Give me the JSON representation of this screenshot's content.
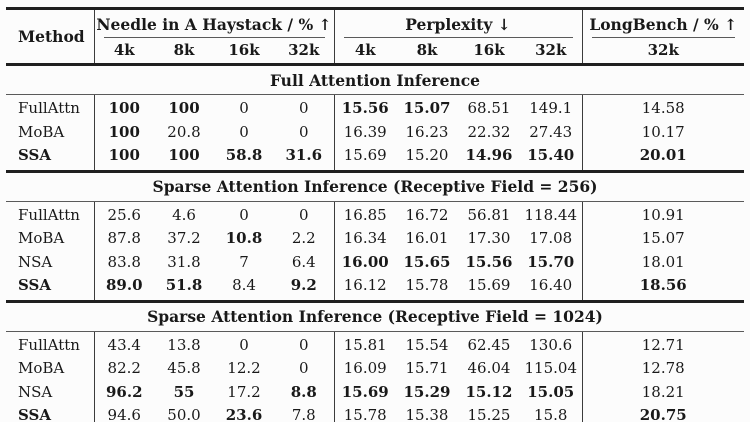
{
  "header": {
    "method": "Method",
    "groups": [
      {
        "label": "Needle in A Haystack / %",
        "arrow": "↑",
        "cols": [
          "4k",
          "8k",
          "16k",
          "32k"
        ]
      },
      {
        "label": "Perplexity",
        "arrow": "↓",
        "cols": [
          "4k",
          "8k",
          "16k",
          "32k"
        ]
      },
      {
        "label": "LongBench / %",
        "arrow": "↑",
        "cols": [
          "32k"
        ]
      }
    ]
  },
  "sections": [
    {
      "title": "Full Attention Inference",
      "rows": [
        {
          "method": "FullAttn",
          "method_bold": false,
          "cells": [
            {
              "v": "100",
              "b": true
            },
            {
              "v": "100",
              "b": true
            },
            {
              "v": "0",
              "b": false
            },
            {
              "v": "0",
              "b": false
            },
            {
              "v": "15.56",
              "b": true
            },
            {
              "v": "15.07",
              "b": true
            },
            {
              "v": "68.51",
              "b": false
            },
            {
              "v": "149.1",
              "b": false
            },
            {
              "v": "14.58",
              "b": false
            }
          ]
        },
        {
          "method": "MoBA",
          "method_bold": false,
          "cells": [
            {
              "v": "100",
              "b": true
            },
            {
              "v": "20.8",
              "b": false
            },
            {
              "v": "0",
              "b": false
            },
            {
              "v": "0",
              "b": false
            },
            {
              "v": "16.39",
              "b": false
            },
            {
              "v": "16.23",
              "b": false
            },
            {
              "v": "22.32",
              "b": false
            },
            {
              "v": "27.43",
              "b": false
            },
            {
              "v": "10.17",
              "b": false
            }
          ]
        },
        {
          "method": "SSA",
          "method_bold": true,
          "cells": [
            {
              "v": "100",
              "b": true
            },
            {
              "v": "100",
              "b": true
            },
            {
              "v": "58.8",
              "b": true
            },
            {
              "v": "31.6",
              "b": true
            },
            {
              "v": "15.69",
              "b": false
            },
            {
              "v": "15.20",
              "b": false
            },
            {
              "v": "14.96",
              "b": true
            },
            {
              "v": "15.40",
              "b": true
            },
            {
              "v": "20.01",
              "b": true
            }
          ]
        }
      ]
    },
    {
      "title": "Sparse Attention Inference (Receptive Field = 256)",
      "rows": [
        {
          "method": "FullAttn",
          "method_bold": false,
          "cells": [
            {
              "v": "25.6",
              "b": false
            },
            {
              "v": "4.6",
              "b": false
            },
            {
              "v": "0",
              "b": false
            },
            {
              "v": "0",
              "b": false
            },
            {
              "v": "16.85",
              "b": false
            },
            {
              "v": "16.72",
              "b": false
            },
            {
              "v": "56.81",
              "b": false
            },
            {
              "v": "118.44",
              "b": false
            },
            {
              "v": "10.91",
              "b": false
            }
          ]
        },
        {
          "method": "MoBA",
          "method_bold": false,
          "cells": [
            {
              "v": "87.8",
              "b": false
            },
            {
              "v": "37.2",
              "b": false
            },
            {
              "v": "10.8",
              "b": true
            },
            {
              "v": "2.2",
              "b": false
            },
            {
              "v": "16.34",
              "b": false
            },
            {
              "v": "16.01",
              "b": false
            },
            {
              "v": "17.30",
              "b": false
            },
            {
              "v": "17.08",
              "b": false
            },
            {
              "v": "15.07",
              "b": false
            }
          ]
        },
        {
          "method": "NSA",
          "method_bold": false,
          "cells": [
            {
              "v": "83.8",
              "b": false
            },
            {
              "v": "31.8",
              "b": false
            },
            {
              "v": "7",
              "b": false
            },
            {
              "v": "6.4",
              "b": false
            },
            {
              "v": "16.00",
              "b": true
            },
            {
              "v": "15.65",
              "b": true
            },
            {
              "v": "15.56",
              "b": true
            },
            {
              "v": "15.70",
              "b": true
            },
            {
              "v": "18.01",
              "b": false
            }
          ]
        },
        {
          "method": "SSA",
          "method_bold": true,
          "cells": [
            {
              "v": "89.0",
              "b": true
            },
            {
              "v": "51.8",
              "b": true
            },
            {
              "v": "8.4",
              "b": false
            },
            {
              "v": "9.2",
              "b": true
            },
            {
              "v": "16.12",
              "b": false
            },
            {
              "v": "15.78",
              "b": false
            },
            {
              "v": "15.69",
              "b": false
            },
            {
              "v": "16.40",
              "b": false
            },
            {
              "v": "18.56",
              "b": true
            }
          ]
        }
      ]
    },
    {
      "title": "Sparse Attention Inference (Receptive Field = 1024)",
      "rows": [
        {
          "method": "FullAttn",
          "method_bold": false,
          "cells": [
            {
              "v": "43.4",
              "b": false
            },
            {
              "v": "13.8",
              "b": false
            },
            {
              "v": "0",
              "b": false
            },
            {
              "v": "0",
              "b": false
            },
            {
              "v": "15.81",
              "b": false
            },
            {
              "v": "15.54",
              "b": false
            },
            {
              "v": "62.45",
              "b": false
            },
            {
              "v": "130.6",
              "b": false
            },
            {
              "v": "12.71",
              "b": false
            }
          ]
        },
        {
          "method": "MoBA",
          "method_bold": false,
          "cells": [
            {
              "v": "82.2",
              "b": false
            },
            {
              "v": "45.8",
              "b": false
            },
            {
              "v": "12.2",
              "b": false
            },
            {
              "v": "0",
              "b": false
            },
            {
              "v": "16.09",
              "b": false
            },
            {
              "v": "15.71",
              "b": false
            },
            {
              "v": "46.04",
              "b": false
            },
            {
              "v": "115.04",
              "b": false
            },
            {
              "v": "12.78",
              "b": false
            }
          ]
        },
        {
          "method": "NSA",
          "method_bold": false,
          "cells": [
            {
              "v": "96.2",
              "b": true
            },
            {
              "v": "55",
              "b": true
            },
            {
              "v": "17.2",
              "b": false
            },
            {
              "v": "8.8",
              "b": true
            },
            {
              "v": "15.69",
              "b": true
            },
            {
              "v": "15.29",
              "b": true
            },
            {
              "v": "15.12",
              "b": true
            },
            {
              "v": "15.05",
              "b": true
            },
            {
              "v": "18.21",
              "b": false
            }
          ]
        },
        {
          "method": "SSA",
          "method_bold": true,
          "cells": [
            {
              "v": "94.6",
              "b": false
            },
            {
              "v": "50.0",
              "b": false
            },
            {
              "v": "23.6",
              "b": true
            },
            {
              "v": "7.8",
              "b": false
            },
            {
              "v": "15.78",
              "b": false
            },
            {
              "v": "15.38",
              "b": false
            },
            {
              "v": "15.25",
              "b": false
            },
            {
              "v": "15.8",
              "b": false
            },
            {
              "v": "20.75",
              "b": true
            }
          ]
        }
      ]
    }
  ],
  "colors": {
    "text": "#191919",
    "rule_thick": "#1f1f1f",
    "rule_thin": "#5a5a5a",
    "background": "#fcfcfc"
  }
}
